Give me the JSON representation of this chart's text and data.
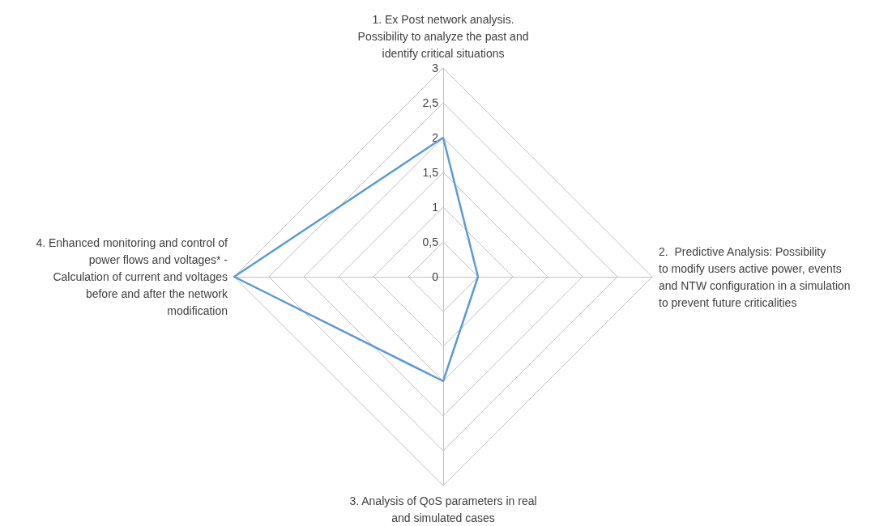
{
  "chart_data": {
    "type": "radar",
    "categories": [
      "1. Ex Post network analysis. Possibility to analyze the past and identify critical situations",
      "2.  Predictive Analysis: Possibility to modify users active power, events and NTW configuration in a simulation to prevent future criticalities",
      "3. Analysis of QoS parameters in real and simulated cases",
      "4. Enhanced monitoring and control of power flows and voltages* - Calculation of current and voltages before and after the network modification"
    ],
    "series": [
      {
        "color": "#5b9bd5",
        "values": [
          2,
          0.5,
          1.5,
          3
        ]
      }
    ],
    "ylim": [
      0,
      3
    ],
    "yticks": [
      0,
      {
        "value": 0.5,
        "label": "0,5"
      },
      1,
      {
        "value": 1.5,
        "label": "1,5"
      },
      2,
      {
        "value": 2.5,
        "label": "2,5"
      },
      3
    ],
    "grid": true,
    "marker": "none"
  }
}
